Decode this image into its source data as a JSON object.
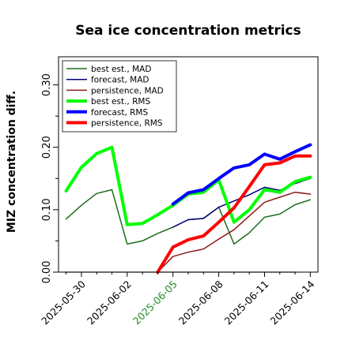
{
  "chart_data": {
    "type": "line",
    "title": "Sea ice concentration metrics",
    "xlabel": "",
    "ylabel": "MIZ concentration diff.",
    "ylim": [
      0,
      0.345
    ],
    "yticks": [
      0.0,
      0.1,
      0.2,
      0.3
    ],
    "ytick_labels": [
      "0.00",
      "0.10",
      "0.20",
      "0.30"
    ],
    "xlim": [
      "2025-05-28T12:00",
      "2025-06-14T12:00"
    ],
    "xticks": [
      "2025-05-30",
      "2025-06-02",
      "2025-06-05",
      "2025-06-08",
      "2025-06-11",
      "2025-06-14"
    ],
    "xtick_labels": [
      "2025-05-30",
      "2025-06-02",
      "2025-06-05",
      "2025-06-08",
      "2025-06-11",
      "2025-06-14"
    ],
    "xtick_colors": [
      "#000000",
      "#000000",
      "#228B22",
      "#000000",
      "#000000",
      "#000000"
    ],
    "grid": false,
    "legend_position": "top-left",
    "zero_line": {
      "y": 0,
      "color": "#555555"
    },
    "series": [
      {
        "name": "best est., MAD",
        "color": "#1b6e1b",
        "width": "thin",
        "points": [
          [
            "2025-05-29",
            0.085
          ],
          [
            "2025-05-30",
            0.107
          ],
          [
            "2025-05-31",
            0.126
          ],
          [
            "2025-06-01",
            0.132
          ],
          [
            "2025-06-02",
            0.045
          ],
          [
            "2025-06-03",
            0.05
          ],
          [
            "2025-06-04",
            0.062
          ],
          [
            "2025-06-05",
            0.072
          ],
          [
            "2025-06-06",
            0.084
          ],
          [
            "2025-06-07",
            0.086
          ],
          [
            "2025-06-08",
            0.104
          ],
          [
            "2025-06-09",
            0.045
          ],
          [
            "2025-06-10",
            0.063
          ],
          [
            "2025-06-11",
            0.088
          ],
          [
            "2025-06-12",
            0.093
          ],
          [
            "2025-06-13",
            0.108
          ],
          [
            "2025-06-14",
            0.116
          ]
        ]
      },
      {
        "name": "forecast,  MAD",
        "color": "#000080",
        "width": "thin",
        "points": [
          [
            "2025-06-05",
            0.072
          ],
          [
            "2025-06-06",
            0.084
          ],
          [
            "2025-06-07",
            0.086
          ],
          [
            "2025-06-08",
            0.104
          ],
          [
            "2025-06-09",
            0.114
          ],
          [
            "2025-06-10",
            0.124
          ],
          [
            "2025-06-11",
            0.136
          ],
          [
            "2025-06-12",
            0.131
          ],
          [
            "2025-06-13",
            0.142
          ],
          [
            "2025-06-14",
            0.15
          ]
        ]
      },
      {
        "name": "persistence, MAD",
        "color": "#8b1a1a",
        "width": "thin",
        "points": [
          [
            "2025-06-04",
            0.0
          ],
          [
            "2025-06-05",
            0.025
          ],
          [
            "2025-06-06",
            0.032
          ],
          [
            "2025-06-07",
            0.037
          ],
          [
            "2025-06-08",
            0.053
          ],
          [
            "2025-06-09",
            0.068
          ],
          [
            "2025-06-10",
            0.09
          ],
          [
            "2025-06-11",
            0.112
          ],
          [
            "2025-06-12",
            0.12
          ],
          [
            "2025-06-13",
            0.128
          ],
          [
            "2025-06-14",
            0.125
          ]
        ]
      },
      {
        "name": "best est., RMS",
        "color": "#00ff00",
        "width": "thick",
        "points": [
          [
            "2025-05-29",
            0.13
          ],
          [
            "2025-05-30",
            0.168
          ],
          [
            "2025-05-31",
            0.19
          ],
          [
            "2025-06-01",
            0.2
          ],
          [
            "2025-06-02",
            0.076
          ],
          [
            "2025-06-03",
            0.078
          ],
          [
            "2025-06-04",
            0.092
          ],
          [
            "2025-06-05",
            0.107
          ],
          [
            "2025-06-06",
            0.125
          ],
          [
            "2025-06-07",
            0.128
          ],
          [
            "2025-06-08",
            0.148
          ],
          [
            "2025-06-09",
            0.08
          ],
          [
            "2025-06-10",
            0.1
          ],
          [
            "2025-06-11",
            0.132
          ],
          [
            "2025-06-12",
            0.128
          ],
          [
            "2025-06-13",
            0.145
          ],
          [
            "2025-06-14",
            0.152
          ]
        ]
      },
      {
        "name": "forecast,  RMS",
        "color": "#0000ff",
        "width": "thick",
        "points": [
          [
            "2025-06-05",
            0.109
          ],
          [
            "2025-06-06",
            0.127
          ],
          [
            "2025-06-07",
            0.132
          ],
          [
            "2025-06-08",
            0.15
          ],
          [
            "2025-06-09",
            0.167
          ],
          [
            "2025-06-10",
            0.172
          ],
          [
            "2025-06-11",
            0.189
          ],
          [
            "2025-06-12",
            0.181
          ],
          [
            "2025-06-13",
            0.193
          ],
          [
            "2025-06-14",
            0.204
          ]
        ]
      },
      {
        "name": "persistence, RMS",
        "color": "#ff0000",
        "width": "thick",
        "points": [
          [
            "2025-06-04",
            0.0
          ],
          [
            "2025-06-05",
            0.04
          ],
          [
            "2025-06-06",
            0.052
          ],
          [
            "2025-06-07",
            0.058
          ],
          [
            "2025-06-08",
            0.08
          ],
          [
            "2025-06-09",
            0.103
          ],
          [
            "2025-06-10",
            0.137
          ],
          [
            "2025-06-11",
            0.172
          ],
          [
            "2025-06-12",
            0.175
          ],
          [
            "2025-06-13",
            0.186
          ],
          [
            "2025-06-14",
            0.186
          ]
        ]
      }
    ]
  }
}
